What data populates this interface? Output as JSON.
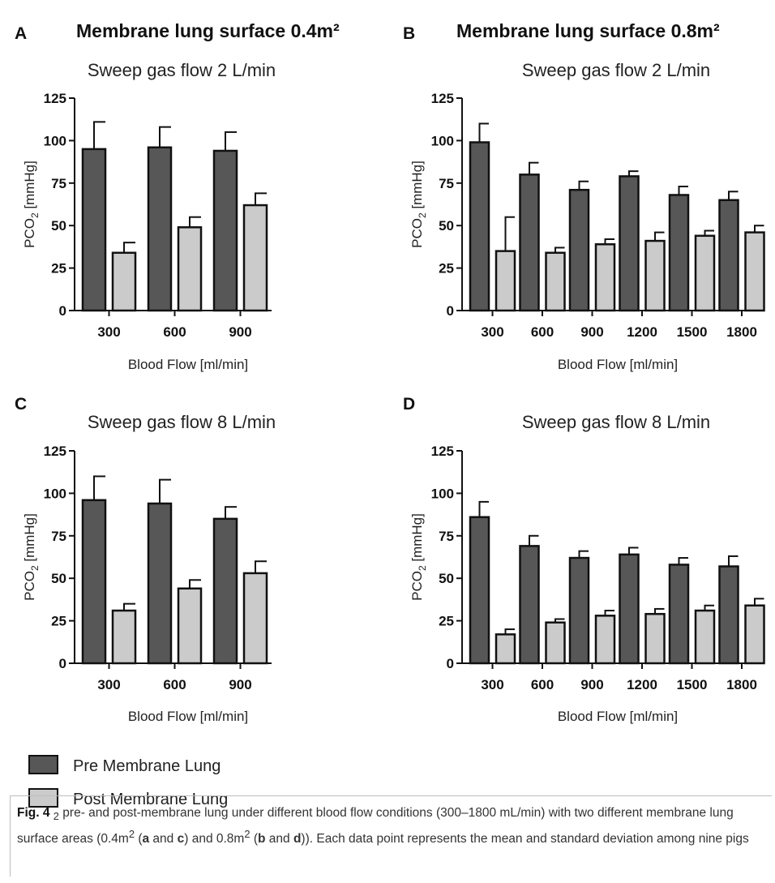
{
  "figure": {
    "panels": [
      {
        "letter": "A",
        "heading": "Membrane lung surface 0.4m²"
      },
      {
        "letter": "B",
        "heading": "Membrane lung surface 0.8m²"
      },
      {
        "letter": "C",
        "heading": ""
      },
      {
        "letter": "D",
        "heading": ""
      }
    ],
    "colors": {
      "pre": "#575757",
      "post": "#cbcbcb",
      "outline": "#111111"
    },
    "legend": [
      {
        "label": "Pre Membrane Lung",
        "color": "#575757"
      },
      {
        "label": "Post Membrane Lung",
        "color": "#cbcbcb"
      }
    ],
    "caption": {
      "label": "Fig. 4",
      "pco2": "PCO",
      "sub2": "2",
      "text1": " pre- and post-membrane lung under different blood flow conditions (300–1800 mL/min) with two different membrane lung surface areas (0.4m",
      "sup2a": "2",
      "text2": " (",
      "a": "a",
      "and1": " and ",
      "c": "c",
      "text3": ") and 0.8m",
      "sup2b": "2",
      "text4": " (",
      "b": "b",
      "and2": " and ",
      "d": "d",
      "text5": ")). Each data point represents the mean and standard deviation among nine pigs"
    }
  },
  "chart_data": [
    {
      "panel": "A",
      "type": "bar",
      "title": "Sweep gas flow 2 L/min",
      "xlabel": "Blood Flow [ml/min]",
      "ylabel": "PCO",
      "ylabel_sub": "2",
      "ylabel_suffix": " [mmHg]",
      "ylim": [
        0,
        125
      ],
      "yticks": [
        "0",
        "25",
        "50",
        "75",
        "100",
        "125"
      ],
      "categories": [
        "300",
        "600",
        "900"
      ],
      "series": [
        {
          "name": "Pre Membrane Lung",
          "values": [
            95,
            96,
            94
          ],
          "errors": [
            16,
            12,
            11
          ]
        },
        {
          "name": "Post Membrane Lung",
          "values": [
            34,
            49,
            62
          ],
          "errors": [
            6,
            6,
            7
          ]
        }
      ]
    },
    {
      "panel": "B",
      "type": "bar",
      "title": "Sweep gas flow 2 L/min",
      "xlabel": "Blood Flow [ml/min]",
      "ylabel": "PCO",
      "ylabel_sub": "2",
      "ylabel_suffix": " [mmHg]",
      "ylim": [
        0,
        125
      ],
      "yticks": [
        "0",
        "25",
        "50",
        "75",
        "100",
        "125"
      ],
      "categories": [
        "300",
        "600",
        "900",
        "1200",
        "1500",
        "1800"
      ],
      "series": [
        {
          "name": "Pre Membrane Lung",
          "values": [
            99,
            80,
            71,
            79,
            68,
            65
          ],
          "errors": [
            11,
            7,
            5,
            3,
            5,
            5
          ]
        },
        {
          "name": "Post Membrane Lung",
          "values": [
            35,
            34,
            39,
            41,
            44,
            46
          ],
          "errors": [
            20,
            3,
            3,
            5,
            3,
            4
          ]
        }
      ]
    },
    {
      "panel": "C",
      "type": "bar",
      "title": "Sweep gas flow 8 L/min",
      "xlabel": "Blood Flow [ml/min]",
      "ylabel": "PCO",
      "ylabel_sub": "2",
      "ylabel_suffix": " [mmHg]",
      "ylim": [
        0,
        125
      ],
      "yticks": [
        "0",
        "25",
        "50",
        "75",
        "100",
        "125"
      ],
      "categories": [
        "300",
        "600",
        "900"
      ],
      "series": [
        {
          "name": "Pre Membrane Lung",
          "values": [
            96,
            94,
            85
          ],
          "errors": [
            14,
            14,
            7
          ]
        },
        {
          "name": "Post Membrane Lung",
          "values": [
            31,
            44,
            53
          ],
          "errors": [
            4,
            5,
            7
          ]
        }
      ]
    },
    {
      "panel": "D",
      "type": "bar",
      "title": "Sweep gas flow 8 L/min",
      "xlabel": "Blood Flow [ml/min]",
      "ylabel": "PCO",
      "ylabel_sub": "2",
      "ylabel_suffix": " [mmHg]",
      "ylim": [
        0,
        125
      ],
      "yticks": [
        "0",
        "25",
        "50",
        "75",
        "100",
        "125"
      ],
      "categories": [
        "300",
        "600",
        "900",
        "1200",
        "1500",
        "1800"
      ],
      "series": [
        {
          "name": "Pre Membrane Lung",
          "values": [
            86,
            69,
            62,
            64,
            58,
            57
          ],
          "errors": [
            9,
            6,
            4,
            4,
            4,
            6
          ]
        },
        {
          "name": "Post Membrane Lung",
          "values": [
            17,
            24,
            28,
            29,
            31,
            34
          ],
          "errors": [
            3,
            2,
            3,
            3,
            3,
            4
          ]
        }
      ]
    }
  ]
}
